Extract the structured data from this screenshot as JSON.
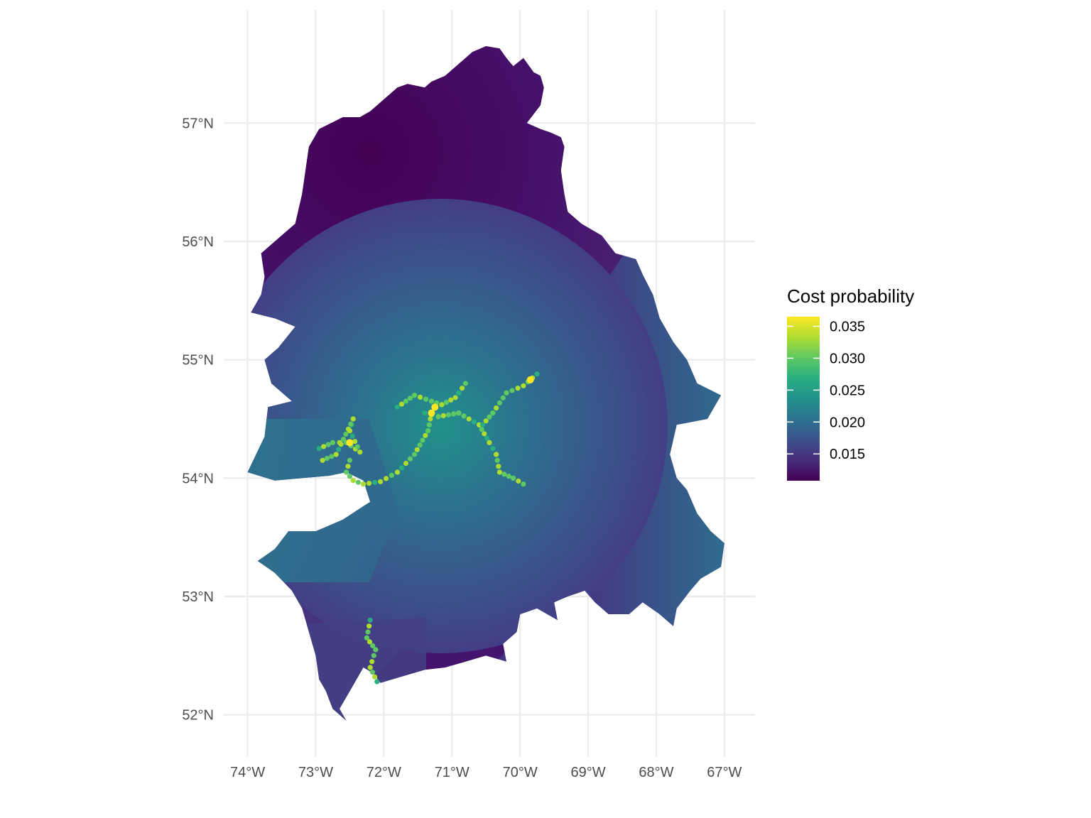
{
  "chart_data": {
    "type": "heatmap",
    "map_kind": "hexagonal raster",
    "xlabel": "",
    "ylabel": "",
    "x_ticks": [
      {
        "value": -74,
        "label": "74°W"
      },
      {
        "value": -73,
        "label": "73°W"
      },
      {
        "value": -72,
        "label": "72°W"
      },
      {
        "value": -71,
        "label": "71°W"
      },
      {
        "value": -70,
        "label": "70°W"
      },
      {
        "value": -69,
        "label": "69°W"
      },
      {
        "value": -68,
        "label": "68°W"
      },
      {
        "value": -67,
        "label": "67°W"
      }
    ],
    "y_ticks": [
      {
        "value": 52,
        "label": "52°N"
      },
      {
        "value": 53,
        "label": "53°N"
      },
      {
        "value": 54,
        "label": "54°N"
      },
      {
        "value": 55,
        "label": "55°N"
      },
      {
        "value": 56,
        "label": "56°N"
      },
      {
        "value": 57,
        "label": "57°N"
      }
    ],
    "xlim": [
      -74.35,
      -66.55
    ],
    "ylim": [
      51.8,
      57.95
    ],
    "grid": true,
    "legend": {
      "title": "Cost probability",
      "placement": "right",
      "palette": "viridis",
      "range": [
        0.0108,
        0.0365
      ],
      "breaks": [
        {
          "value": 0.035,
          "label": "0.035"
        },
        {
          "value": 0.03,
          "label": "0.030"
        },
        {
          "value": 0.025,
          "label": "0.025"
        },
        {
          "value": 0.02,
          "label": "0.020"
        },
        {
          "value": 0.015,
          "label": "0.015"
        }
      ]
    },
    "region_outline": [
      [
        -71.3,
        57.35
      ],
      [
        -71.1,
        57.4
      ],
      [
        -70.9,
        57.5
      ],
      [
        -70.8,
        57.55
      ],
      [
        -70.7,
        57.6
      ],
      [
        -70.5,
        57.65
      ],
      [
        -70.3,
        57.63
      ],
      [
        -70.2,
        57.55
      ],
      [
        -70.1,
        57.48
      ],
      [
        -69.95,
        57.55
      ],
      [
        -69.8,
        57.43
      ],
      [
        -69.7,
        57.4
      ],
      [
        -69.65,
        57.3
      ],
      [
        -69.7,
        57.15
      ],
      [
        -69.9,
        57.0
      ],
      [
        -69.7,
        56.95
      ],
      [
        -69.55,
        56.92
      ],
      [
        -69.4,
        56.88
      ],
      [
        -69.35,
        56.8
      ],
      [
        -69.4,
        56.6
      ],
      [
        -69.35,
        56.4
      ],
      [
        -69.3,
        56.25
      ],
      [
        -69.1,
        56.15
      ],
      [
        -68.8,
        56.05
      ],
      [
        -68.6,
        55.9
      ],
      [
        -68.3,
        55.85
      ],
      [
        -68.2,
        55.72
      ],
      [
        -68.05,
        55.55
      ],
      [
        -67.95,
        55.35
      ],
      [
        -67.75,
        55.15
      ],
      [
        -67.55,
        55.0
      ],
      [
        -67.4,
        54.8
      ],
      [
        -67.05,
        54.7
      ],
      [
        -67.25,
        54.5
      ],
      [
        -67.7,
        54.45
      ],
      [
        -67.8,
        54.2
      ],
      [
        -67.7,
        54.0
      ],
      [
        -67.55,
        53.9
      ],
      [
        -67.4,
        53.7
      ],
      [
        -67.2,
        53.55
      ],
      [
        -67.0,
        53.45
      ],
      [
        -67.05,
        53.25
      ],
      [
        -67.35,
        53.15
      ],
      [
        -67.5,
        53.05
      ],
      [
        -67.7,
        52.9
      ],
      [
        -67.75,
        52.75
      ],
      [
        -67.95,
        52.85
      ],
      [
        -68.2,
        52.95
      ],
      [
        -68.4,
        52.85
      ],
      [
        -68.7,
        52.85
      ],
      [
        -68.9,
        52.95
      ],
      [
        -69.05,
        53.05
      ],
      [
        -69.3,
        53.0
      ],
      [
        -69.5,
        52.95
      ],
      [
        -69.45,
        52.8
      ],
      [
        -69.75,
        52.9
      ],
      [
        -70.0,
        52.85
      ],
      [
        -70.05,
        52.7
      ],
      [
        -70.25,
        52.6
      ],
      [
        -70.2,
        52.45
      ],
      [
        -70.5,
        52.5
      ],
      [
        -70.8,
        52.45
      ],
      [
        -71.1,
        52.4
      ],
      [
        -71.4,
        52.38
      ],
      [
        -71.7,
        52.33
      ],
      [
        -72.05,
        52.27
      ],
      [
        -72.15,
        52.35
      ],
      [
        -72.3,
        52.4
      ],
      [
        -72.4,
        52.3
      ],
      [
        -72.55,
        52.15
      ],
      [
        -72.65,
        52.05
      ],
      [
        -72.55,
        51.95
      ],
      [
        -72.75,
        52.05
      ],
      [
        -72.85,
        52.2
      ],
      [
        -72.95,
        52.3
      ],
      [
        -73.0,
        52.5
      ],
      [
        -73.1,
        52.7
      ],
      [
        -73.2,
        52.9
      ],
      [
        -73.35,
        53.05
      ],
      [
        -73.6,
        53.2
      ],
      [
        -73.85,
        53.3
      ],
      [
        -73.6,
        53.4
      ],
      [
        -73.4,
        53.55
      ],
      [
        -73.0,
        53.55
      ],
      [
        -72.6,
        53.65
      ],
      [
        -72.2,
        53.8
      ],
      [
        -72.3,
        53.98
      ],
      [
        -72.55,
        54.05
      ],
      [
        -72.8,
        54.02
      ],
      [
        -73.2,
        54.0
      ],
      [
        -73.6,
        53.98
      ],
      [
        -74.0,
        54.05
      ],
      [
        -73.75,
        54.35
      ],
      [
        -73.7,
        54.6
      ],
      [
        -73.35,
        54.65
      ],
      [
        -73.65,
        54.8
      ],
      [
        -73.75,
        55.0
      ],
      [
        -73.55,
        55.1
      ],
      [
        -73.3,
        55.28
      ],
      [
        -73.6,
        55.35
      ],
      [
        -73.95,
        55.4
      ],
      [
        -73.8,
        55.55
      ],
      [
        -73.75,
        55.7
      ],
      [
        -73.8,
        55.9
      ],
      [
        -73.6,
        56.0
      ],
      [
        -73.3,
        56.15
      ],
      [
        -73.2,
        56.4
      ],
      [
        -73.15,
        56.6
      ],
      [
        -73.1,
        56.8
      ],
      [
        -72.95,
        56.95
      ],
      [
        -72.6,
        57.05
      ],
      [
        -72.35,
        57.05
      ],
      [
        -72.2,
        57.1
      ],
      [
        -72.0,
        57.2
      ],
      [
        -71.8,
        57.3
      ],
      [
        -71.65,
        57.33
      ],
      [
        -71.4,
        57.3
      ]
    ],
    "paths": [
      {
        "points": [
          [
            -71.8,
            54.6
          ],
          [
            -71.55,
            54.7
          ],
          [
            -71.3,
            54.65
          ],
          [
            -71.15,
            54.62
          ],
          [
            -70.95,
            54.68
          ],
          [
            -70.8,
            54.8
          ]
        ]
      },
      {
        "points": [
          [
            -71.4,
            54.55
          ],
          [
            -71.2,
            54.52
          ],
          [
            -70.9,
            54.55
          ],
          [
            -70.6,
            54.45
          ],
          [
            -70.45,
            54.3
          ],
          [
            -70.35,
            54.2
          ],
          [
            -70.3,
            54.05
          ],
          [
            -70.1,
            54.0
          ],
          [
            -69.95,
            53.95
          ]
        ]
      },
      {
        "points": [
          [
            -70.55,
            54.45
          ],
          [
            -70.4,
            54.55
          ],
          [
            -70.2,
            54.72
          ],
          [
            -69.95,
            54.78
          ],
          [
            -69.75,
            54.88
          ]
        ]
      },
      {
        "points": [
          [
            -71.3,
            54.55
          ],
          [
            -71.35,
            54.4
          ],
          [
            -71.55,
            54.2
          ],
          [
            -71.8,
            54.05
          ],
          [
            -72.05,
            53.97
          ],
          [
            -72.3,
            53.95
          ],
          [
            -72.45,
            53.98
          ],
          [
            -72.55,
            54.05
          ],
          [
            -72.5,
            54.15
          ]
        ]
      },
      {
        "points": [
          [
            -72.95,
            54.25
          ],
          [
            -72.75,
            54.3
          ],
          [
            -72.55,
            54.3
          ],
          [
            -72.35,
            54.22
          ],
          [
            -72.5,
            54.4
          ],
          [
            -72.45,
            54.5
          ],
          [
            -72.7,
            54.2
          ],
          [
            -72.9,
            54.15
          ]
        ]
      },
      {
        "points": [
          [
            -72.2,
            52.8
          ],
          [
            -72.25,
            52.65
          ],
          [
            -72.12,
            52.55
          ],
          [
            -72.2,
            52.4
          ],
          [
            -72.1,
            52.28
          ]
        ]
      }
    ]
  }
}
